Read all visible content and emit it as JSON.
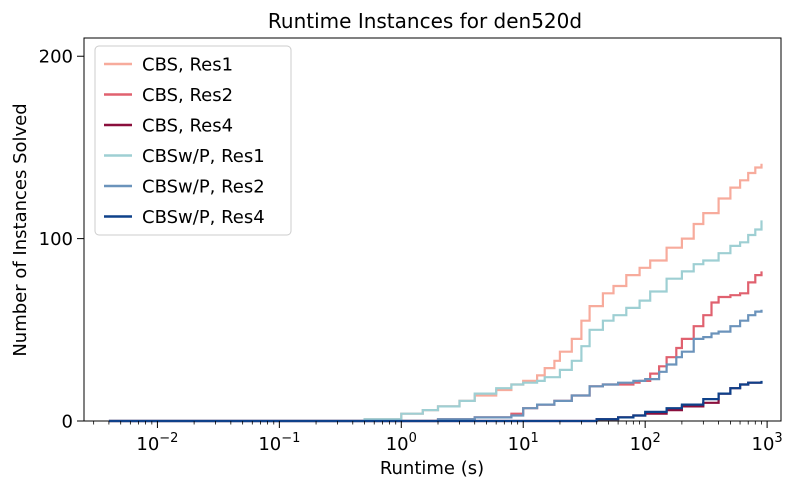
{
  "chart_data": {
    "type": "line",
    "title": "Runtime Instances for den520d",
    "xlabel": "Runtime (s)",
    "ylabel": "Number of Instances Solved",
    "xscale": "log",
    "xlim": [
      0.0025,
      1300
    ],
    "ylim": [
      0,
      210
    ],
    "xticks": [
      {
        "value": 0.01,
        "base": "10",
        "exp": "−2"
      },
      {
        "value": 0.1,
        "base": "10",
        "exp": "−1"
      },
      {
        "value": 1,
        "base": "10",
        "exp": "0"
      },
      {
        "value": 10,
        "base": "10",
        "exp": "1"
      },
      {
        "value": 100,
        "base": "10",
        "exp": "2"
      },
      {
        "value": 1000,
        "base": "10",
        "exp": "3"
      }
    ],
    "yticks": [
      0,
      100,
      200
    ],
    "grid": false,
    "legend_position": "top-left",
    "series": [
      {
        "name": "CBS, Res1",
        "color": "#f7ab9c",
        "points": [
          [
            0.004,
            0
          ],
          [
            0.05,
            0
          ],
          [
            0.5,
            1
          ],
          [
            1,
            4
          ],
          [
            1.5,
            6
          ],
          [
            2,
            8
          ],
          [
            3,
            11
          ],
          [
            4,
            14
          ],
          [
            6,
            17
          ],
          [
            8,
            20
          ],
          [
            10,
            22
          ],
          [
            13,
            25
          ],
          [
            15,
            29
          ],
          [
            18,
            33
          ],
          [
            20,
            38
          ],
          [
            25,
            45
          ],
          [
            30,
            55
          ],
          [
            35,
            63
          ],
          [
            45,
            70
          ],
          [
            55,
            74
          ],
          [
            70,
            80
          ],
          [
            90,
            84
          ],
          [
            110,
            88
          ],
          [
            150,
            95
          ],
          [
            200,
            100
          ],
          [
            250,
            108
          ],
          [
            300,
            114
          ],
          [
            400,
            122
          ],
          [
            500,
            128
          ],
          [
            600,
            132
          ],
          [
            700,
            136
          ],
          [
            800,
            139
          ],
          [
            900,
            141
          ]
        ]
      },
      {
        "name": "CBS, Res2",
        "color": "#e0616f",
        "points": [
          [
            0.004,
            0
          ],
          [
            0.5,
            0
          ],
          [
            2,
            1
          ],
          [
            4,
            2
          ],
          [
            8,
            4
          ],
          [
            10,
            7
          ],
          [
            13,
            9
          ],
          [
            18,
            11
          ],
          [
            25,
            14
          ],
          [
            35,
            19
          ],
          [
            45,
            20
          ],
          [
            60,
            20
          ],
          [
            80,
            21
          ],
          [
            90,
            22
          ],
          [
            110,
            26
          ],
          [
            130,
            30
          ],
          [
            150,
            35
          ],
          [
            180,
            40
          ],
          [
            200,
            45
          ],
          [
            250,
            52
          ],
          [
            300,
            58
          ],
          [
            350,
            65
          ],
          [
            400,
            68
          ],
          [
            500,
            69
          ],
          [
            600,
            70
          ],
          [
            700,
            76
          ],
          [
            800,
            80
          ],
          [
            900,
            82
          ]
        ]
      },
      {
        "name": "CBS, Res4",
        "color": "#8a0f3c",
        "points": [
          [
            0.004,
            0
          ],
          [
            3,
            0
          ],
          [
            8,
            0
          ],
          [
            20,
            0
          ],
          [
            40,
            1
          ],
          [
            60,
            2
          ],
          [
            80,
            3
          ],
          [
            100,
            4
          ],
          [
            150,
            6
          ],
          [
            200,
            8
          ],
          [
            300,
            10
          ],
          [
            400,
            15
          ],
          [
            500,
            18
          ],
          [
            600,
            20
          ],
          [
            700,
            21
          ],
          [
            900,
            21
          ]
        ]
      },
      {
        "name": "CBSw/P, Res1",
        "color": "#9ecfd3",
        "points": [
          [
            0.004,
            0
          ],
          [
            0.05,
            0
          ],
          [
            0.5,
            1
          ],
          [
            1,
            4
          ],
          [
            1.5,
            6
          ],
          [
            2,
            8
          ],
          [
            3,
            11
          ],
          [
            4,
            15
          ],
          [
            6,
            18
          ],
          [
            8,
            20
          ],
          [
            10,
            21
          ],
          [
            13,
            22
          ],
          [
            15,
            24
          ],
          [
            20,
            28
          ],
          [
            25,
            33
          ],
          [
            30,
            41
          ],
          [
            35,
            50
          ],
          [
            45,
            55
          ],
          [
            55,
            58
          ],
          [
            70,
            62
          ],
          [
            90,
            66
          ],
          [
            110,
            71
          ],
          [
            150,
            78
          ],
          [
            200,
            82
          ],
          [
            250,
            86
          ],
          [
            300,
            88
          ],
          [
            400,
            92
          ],
          [
            500,
            96
          ],
          [
            600,
            98
          ],
          [
            700,
            102
          ],
          [
            800,
            105
          ],
          [
            900,
            110
          ]
        ]
      },
      {
        "name": "CBSw/P, Res2",
        "color": "#6b93bb",
        "points": [
          [
            0.004,
            0
          ],
          [
            0.5,
            0
          ],
          [
            2,
            1
          ],
          [
            4,
            2
          ],
          [
            8,
            3
          ],
          [
            10,
            7
          ],
          [
            13,
            9
          ],
          [
            18,
            11
          ],
          [
            25,
            14
          ],
          [
            35,
            19
          ],
          [
            45,
            20
          ],
          [
            60,
            21
          ],
          [
            80,
            22
          ],
          [
            100,
            23
          ],
          [
            130,
            27
          ],
          [
            150,
            31
          ],
          [
            180,
            35
          ],
          [
            200,
            38
          ],
          [
            250,
            45
          ],
          [
            300,
            46
          ],
          [
            350,
            48
          ],
          [
            400,
            49
          ],
          [
            500,
            52
          ],
          [
            600,
            55
          ],
          [
            700,
            58
          ],
          [
            800,
            60
          ],
          [
            900,
            61
          ]
        ]
      },
      {
        "name": "CBSw/P, Res4",
        "color": "#0e418a",
        "points": [
          [
            0.004,
            0
          ],
          [
            3,
            0
          ],
          [
            8,
            0
          ],
          [
            20,
            0
          ],
          [
            40,
            1
          ],
          [
            60,
            2
          ],
          [
            80,
            3
          ],
          [
            100,
            5
          ],
          [
            150,
            7
          ],
          [
            200,
            9
          ],
          [
            300,
            12
          ],
          [
            400,
            15
          ],
          [
            500,
            18
          ],
          [
            600,
            20
          ],
          [
            700,
            21
          ],
          [
            900,
            22
          ]
        ]
      }
    ]
  }
}
